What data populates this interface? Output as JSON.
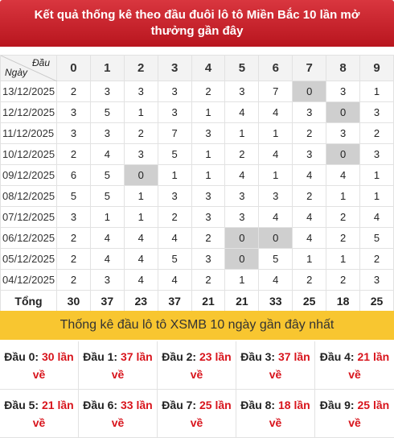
{
  "header": {
    "title": "Kết quả thống kê theo đầu đuôi lô tô Miền Bắc 10 lần mở thưởng gần đây"
  },
  "table": {
    "corner_head": "Đầu",
    "corner_date": "Ngày",
    "heads": [
      "0",
      "1",
      "2",
      "3",
      "4",
      "5",
      "6",
      "7",
      "8",
      "9"
    ],
    "rows": [
      {
        "date": "13/12/2025",
        "values": [
          "2",
          "3",
          "3",
          "3",
          "2",
          "3",
          "7",
          "0",
          "3",
          "1"
        ]
      },
      {
        "date": "12/12/2025",
        "values": [
          "3",
          "5",
          "1",
          "3",
          "1",
          "4",
          "4",
          "3",
          "0",
          "3"
        ]
      },
      {
        "date": "11/12/2025",
        "values": [
          "3",
          "3",
          "2",
          "7",
          "3",
          "1",
          "1",
          "2",
          "3",
          "2"
        ]
      },
      {
        "date": "10/12/2025",
        "values": [
          "2",
          "4",
          "3",
          "5",
          "1",
          "2",
          "4",
          "3",
          "0",
          "3"
        ]
      },
      {
        "date": "09/12/2025",
        "values": [
          "6",
          "5",
          "0",
          "1",
          "1",
          "4",
          "1",
          "4",
          "4",
          "1"
        ]
      },
      {
        "date": "08/12/2025",
        "values": [
          "5",
          "5",
          "1",
          "3",
          "3",
          "3",
          "3",
          "2",
          "1",
          "1"
        ]
      },
      {
        "date": "07/12/2025",
        "values": [
          "3",
          "1",
          "1",
          "2",
          "3",
          "3",
          "4",
          "4",
          "2",
          "4"
        ]
      },
      {
        "date": "06/12/2025",
        "values": [
          "2",
          "4",
          "4",
          "4",
          "2",
          "0",
          "0",
          "4",
          "2",
          "5"
        ]
      },
      {
        "date": "05/12/2025",
        "values": [
          "2",
          "4",
          "4",
          "5",
          "3",
          "0",
          "5",
          "1",
          "1",
          "2"
        ]
      },
      {
        "date": "04/12/2025",
        "values": [
          "2",
          "3",
          "4",
          "4",
          "2",
          "1",
          "4",
          "2",
          "2",
          "3"
        ]
      }
    ],
    "total_label": "Tổng",
    "totals": [
      "30",
      "37",
      "23",
      "37",
      "21",
      "21",
      "33",
      "25",
      "18",
      "25"
    ],
    "colors": {
      "zero_cell": "#cfcfcf",
      "border": "#e2e2e2",
      "header_bg": "#f3f3f3"
    }
  },
  "banner": {
    "text": "Thống kê đầu lô tô XSMB 10 ngày gần đây nhất",
    "color": "#f8c630"
  },
  "summary": [
    {
      "key": "Đầu 0:",
      "value": "30 lần về"
    },
    {
      "key": "Đầu 1:",
      "value": "37 lần về"
    },
    {
      "key": "Đầu 2:",
      "value": "23 lần về"
    },
    {
      "key": "Đầu 3:",
      "value": "37 lần về"
    },
    {
      "key": "Đầu 4:",
      "value": "21 lần về"
    },
    {
      "key": "Đầu 5:",
      "value": "21 lần về"
    },
    {
      "key": "Đầu 6:",
      "value": "33 lần về"
    },
    {
      "key": "Đầu 7:",
      "value": "25 lần về"
    },
    {
      "key": "Đầu 8:",
      "value": "18 lần về"
    },
    {
      "key": "Đầu 9:",
      "value": "25 lần về"
    }
  ],
  "theme": {
    "header_red": "#c62028",
    "value_red": "#d8141c"
  }
}
